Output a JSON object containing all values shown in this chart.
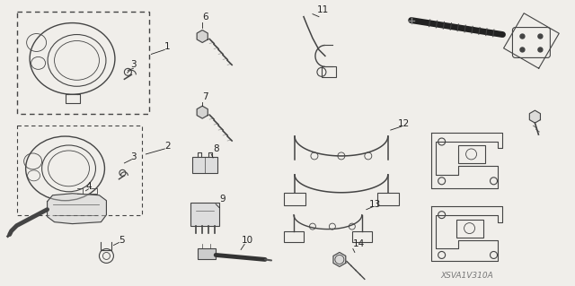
{
  "bg_color": "#f0eeea",
  "line_color": "#444444",
  "text_color": "#222222",
  "fig_width": 6.4,
  "fig_height": 3.19,
  "watermark": "XSVA1V310A",
  "dpi": 100
}
